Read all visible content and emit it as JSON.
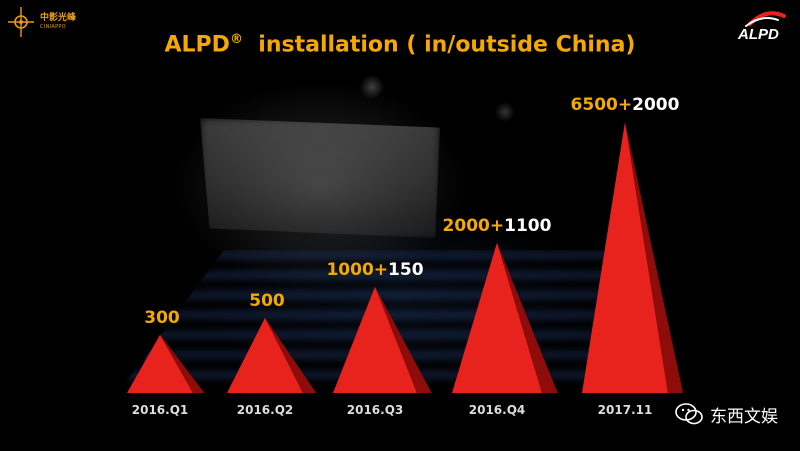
{
  "header": {
    "title_main": "ALPD",
    "title_reg": "®",
    "title_rest": "installation ( in/outside China)",
    "left_logo_cn": "中影光峰",
    "left_logo_en": "CINIAPPO",
    "right_logo": "ALPD"
  },
  "watermark": {
    "text": "东西文娱",
    "icon": "wechat-icon"
  },
  "colors": {
    "title": "#f5a800",
    "china_value": "#f5a800",
    "outside_value": "#ffffff",
    "peak": "#e8231e",
    "peak_shade": "#8e0d0b",
    "category_label": "#dddddd"
  },
  "chart_data": {
    "type": "area",
    "title": "ALPD® installation ( in/outside China)",
    "categories": [
      "2016.Q1",
      "2016.Q2",
      "2016.Q3",
      "2016.Q4",
      "2017.11"
    ],
    "series": [
      {
        "values": [
          300,
          500,
          1000,
          2000,
          6500
        ]
      },
      {
        "values": [
          null,
          null,
          150,
          1100,
          2000
        ]
      }
    ],
    "data_labels": [
      {
        "china": "300",
        "plus": "",
        "outside": ""
      },
      {
        "china": "500",
        "plus": "",
        "outside": ""
      },
      {
        "china": "1000",
        "plus": "+",
        "outside": "150"
      },
      {
        "china": "2000",
        "plus": "+",
        "outside": "1100"
      },
      {
        "china": "6500",
        "plus": "+",
        "outside": "2000"
      }
    ],
    "grid": false,
    "legend": "none"
  }
}
